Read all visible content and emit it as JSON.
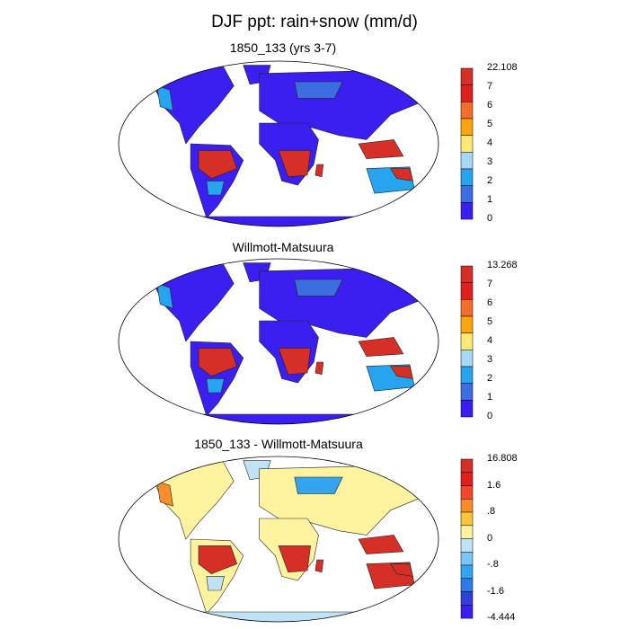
{
  "title": "DJF ppt: rain+snow (mm/d)",
  "panels": [
    {
      "title": "1850_133 (yrs 3-7)",
      "colorbar": {
        "labels": [
          "22.108",
          "7",
          "6",
          "5",
          "4",
          "3",
          "2",
          "1",
          "0"
        ],
        "colors": [
          "#d62f27",
          "#e21f1f",
          "#f46d2a",
          "#fca40e",
          "#ffe873",
          "#a8d8f5",
          "#27a4f0",
          "#3c6ee0",
          "#3a1ff0"
        ]
      }
    },
    {
      "title": "Willmott-Matsuura",
      "colorbar": {
        "labels": [
          "13.268",
          "7",
          "6",
          "5",
          "4",
          "3",
          "2",
          "1",
          "0"
        ],
        "colors": [
          "#d62f27",
          "#e21f1f",
          "#f46d2a",
          "#fca40e",
          "#ffe873",
          "#a8d8f5",
          "#27a4f0",
          "#3c6ee0",
          "#3a1ff0"
        ]
      }
    },
    {
      "title": "1850_133 - Willmott-Matsuura",
      "colorbar": {
        "labels": [
          "16.808",
          "1.6",
          ".8",
          "0",
          "-.8",
          "-1.6",
          "-4.444"
        ],
        "colors": [
          "#d62f27",
          "#e21f1f",
          "#f4472a",
          "#f98d2a",
          "#fcc43a",
          "#fff3a0",
          "#bfe3f5",
          "#7cc5f2",
          "#32a4f0",
          "#2d7ae8",
          "#3040d8",
          "#3a1ff0"
        ]
      }
    }
  ]
}
